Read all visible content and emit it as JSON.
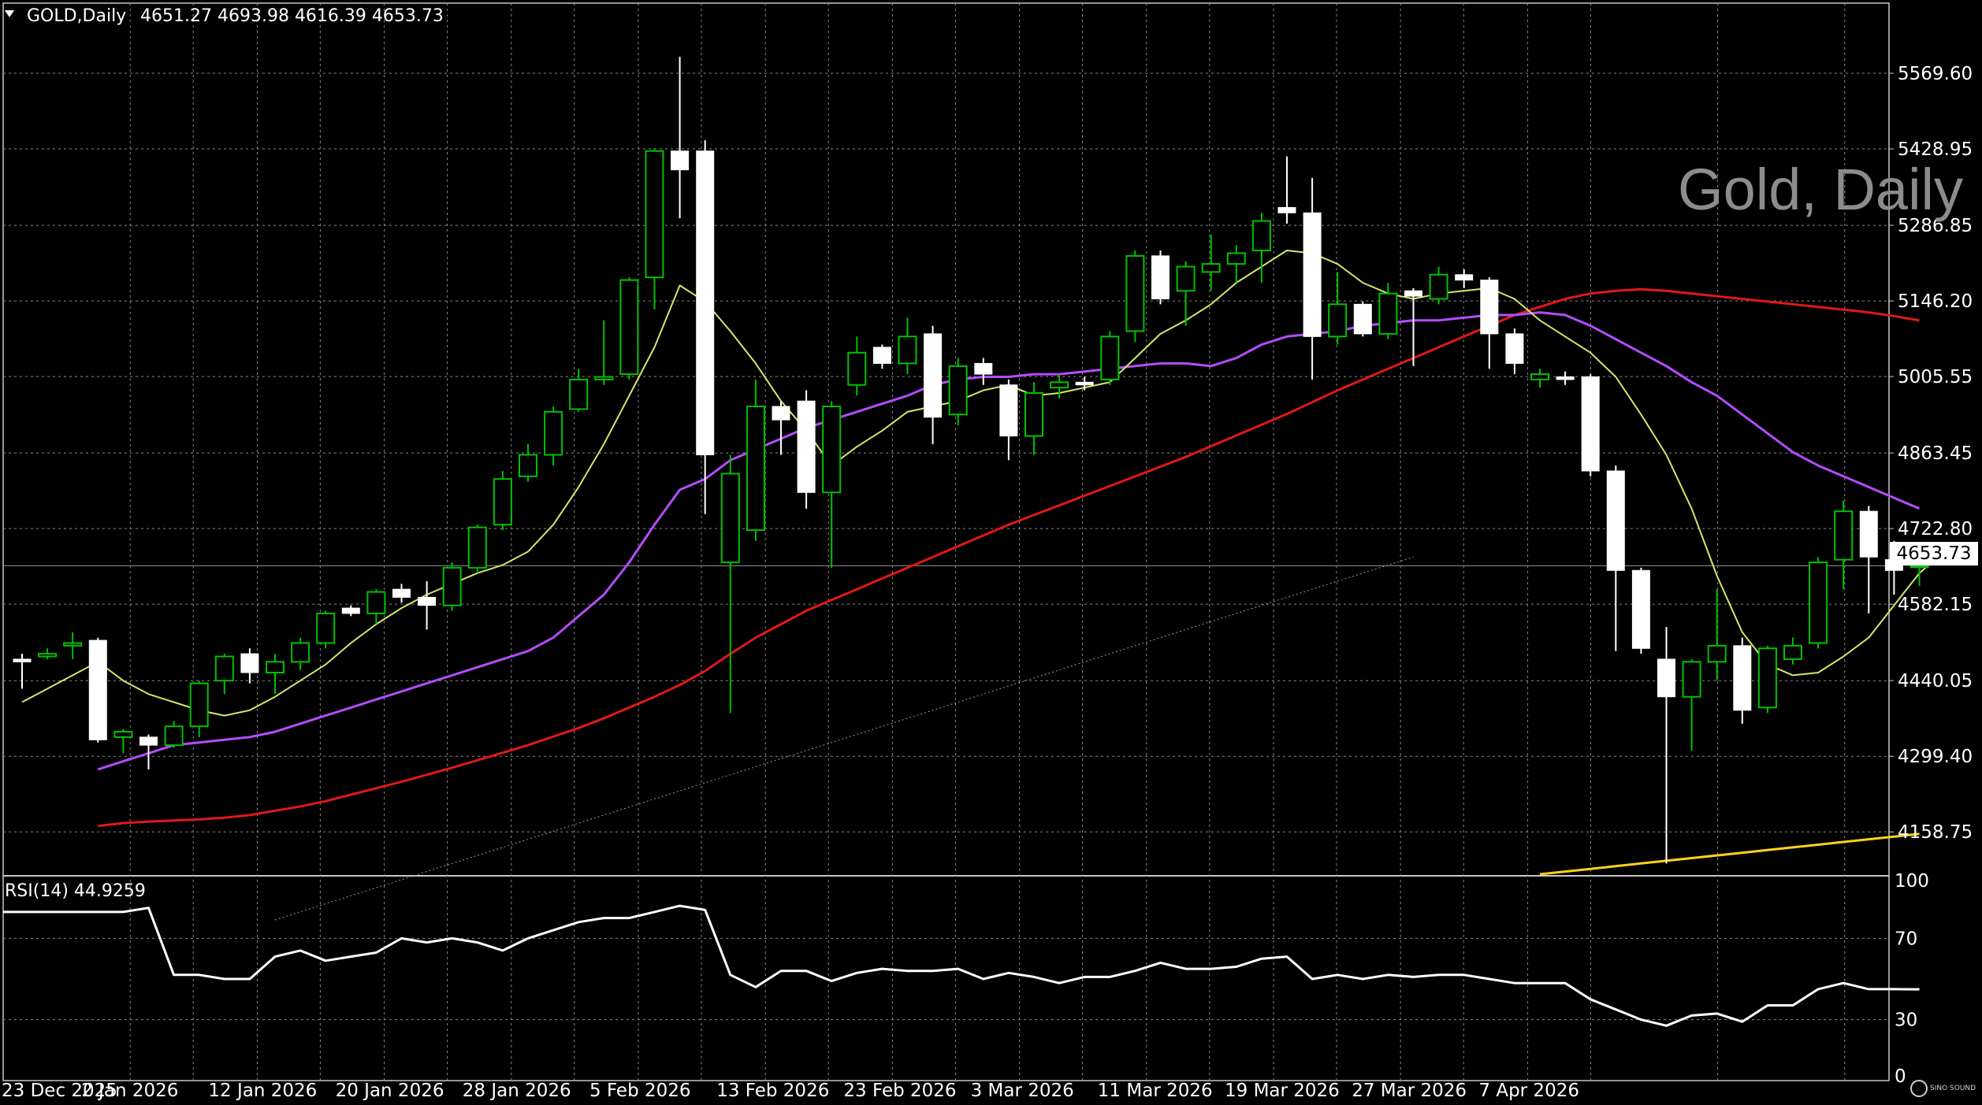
{
  "header": {
    "dropdown_icon": "triangle-down-icon",
    "symbol": "GOLD,Daily",
    "ohlc": "4651.27 4693.98 4616.39 4653.73"
  },
  "watermark": "Gold, Daily",
  "current_price": "4653.73",
  "rsi_label": "RSI(14) 44.9259",
  "logo_text": "SINO SOUND",
  "colors": {
    "background": "#000000",
    "grid": "#8a8a8a",
    "bull_candle": "#00c000",
    "bear_candle": "#ffffff",
    "ma_fast": "#cfe96a",
    "ma_mid": "#b44cff",
    "ma_slow": "#e01818",
    "ma_200": "#9a9a9a",
    "ma_yellow": "#ffd21a",
    "rsi": "#ffffff"
  },
  "chart_data": [
    {
      "type": "candlestick",
      "title": "Gold, Daily",
      "ylim": [
        4080,
        5700
      ],
      "price_ticks": [
        "5569.60",
        "5428.95",
        "5286.85",
        "5146.20",
        "5005.55",
        "4863.45",
        "4722.80",
        "4582.15",
        "4440.05",
        "4299.40",
        "4158.75"
      ],
      "date_ticks": [
        "23 Dec 2025",
        "2 Jan 2026",
        "12 Jan 2026",
        "20 Jan 2026",
        "28 Jan 2026",
        "5 Feb 2026",
        "13 Feb 2026",
        "23 Feb 2026",
        "3 Mar 2026",
        "11 Mar 2026",
        "19 Mar 2026",
        "27 Mar 2026",
        "7 Apr 2026"
      ],
      "candles": [
        {
          "o": 4480,
          "h": 4490,
          "l": 4425,
          "c": 4475
        },
        {
          "o": 4485,
          "h": 4500,
          "l": 4480,
          "c": 4490
        },
        {
          "o": 4505,
          "h": 4530,
          "l": 4480,
          "c": 4510
        },
        {
          "o": 4515,
          "h": 4520,
          "l": 4325,
          "c": 4330
        },
        {
          "o": 4335,
          "h": 4350,
          "l": 4305,
          "c": 4345
        },
        {
          "o": 4335,
          "h": 4340,
          "l": 4275,
          "c": 4320
        },
        {
          "o": 4320,
          "h": 4365,
          "l": 4315,
          "c": 4355
        },
        {
          "o": 4355,
          "h": 4440,
          "l": 4335,
          "c": 4435
        },
        {
          "o": 4440,
          "h": 4490,
          "l": 4415,
          "c": 4485
        },
        {
          "o": 4490,
          "h": 4500,
          "l": 4435,
          "c": 4455
        },
        {
          "o": 4455,
          "h": 4490,
          "l": 4415,
          "c": 4475
        },
        {
          "o": 4475,
          "h": 4520,
          "l": 4460,
          "c": 4510
        },
        {
          "o": 4510,
          "h": 4570,
          "l": 4500,
          "c": 4565
        },
        {
          "o": 4575,
          "h": 4580,
          "l": 4560,
          "c": 4565
        },
        {
          "o": 4565,
          "h": 4610,
          "l": 4545,
          "c": 4605
        },
        {
          "o": 4610,
          "h": 4620,
          "l": 4585,
          "c": 4595
        },
        {
          "o": 4595,
          "h": 4625,
          "l": 4535,
          "c": 4580
        },
        {
          "o": 4580,
          "h": 4660,
          "l": 4570,
          "c": 4650
        },
        {
          "o": 4650,
          "h": 4730,
          "l": 4640,
          "c": 4725
        },
        {
          "o": 4730,
          "h": 4830,
          "l": 4720,
          "c": 4815
        },
        {
          "o": 4820,
          "h": 4880,
          "l": 4810,
          "c": 4860
        },
        {
          "o": 4860,
          "h": 4950,
          "l": 4840,
          "c": 4940
        },
        {
          "o": 4945,
          "h": 5020,
          "l": 4940,
          "c": 5000
        },
        {
          "o": 5000,
          "h": 5110,
          "l": 4990,
          "c": 5005
        },
        {
          "o": 5010,
          "h": 5190,
          "l": 5000,
          "c": 5185
        },
        {
          "o": 5190,
          "h": 5430,
          "l": 5130,
          "c": 5425
        },
        {
          "o": 5425,
          "h": 5600,
          "l": 5300,
          "c": 5390
        },
        {
          "o": 5425,
          "h": 5445,
          "l": 4750,
          "c": 4860
        },
        {
          "o": 4660,
          "h": 4860,
          "l": 4380,
          "c": 4825
        },
        {
          "o": 4720,
          "h": 5000,
          "l": 4700,
          "c": 4950
        },
        {
          "o": 4950,
          "h": 4960,
          "l": 4860,
          "c": 4925
        },
        {
          "o": 4960,
          "h": 4980,
          "l": 4760,
          "c": 4790
        },
        {
          "o": 4790,
          "h": 4960,
          "l": 4650,
          "c": 4950
        },
        {
          "o": 4990,
          "h": 5080,
          "l": 4970,
          "c": 5050
        },
        {
          "o": 5060,
          "h": 5065,
          "l": 5020,
          "c": 5030
        },
        {
          "o": 5030,
          "h": 5115,
          "l": 5010,
          "c": 5080
        },
        {
          "o": 5085,
          "h": 5100,
          "l": 4880,
          "c": 4930
        },
        {
          "o": 4935,
          "h": 5040,
          "l": 4915,
          "c": 5025
        },
        {
          "o": 5030,
          "h": 5040,
          "l": 4990,
          "c": 5010
        },
        {
          "o": 4990,
          "h": 5000,
          "l": 4850,
          "c": 4895
        },
        {
          "o": 4895,
          "h": 4995,
          "l": 4860,
          "c": 4975
        },
        {
          "o": 4985,
          "h": 5010,
          "l": 4965,
          "c": 4995
        },
        {
          "o": 4995,
          "h": 5005,
          "l": 4980,
          "c": 4990
        },
        {
          "o": 5000,
          "h": 5090,
          "l": 4990,
          "c": 5080
        },
        {
          "o": 5090,
          "h": 5240,
          "l": 5070,
          "c": 5230
        },
        {
          "o": 5230,
          "h": 5240,
          "l": 5140,
          "c": 5150
        },
        {
          "o": 5165,
          "h": 5220,
          "l": 5100,
          "c": 5210
        },
        {
          "o": 5200,
          "h": 5270,
          "l": 5165,
          "c": 5215
        },
        {
          "o": 5215,
          "h": 5250,
          "l": 5180,
          "c": 5235
        },
        {
          "o": 5240,
          "h": 5310,
          "l": 5180,
          "c": 5295
        },
        {
          "o": 5320,
          "h": 5415,
          "l": 5290,
          "c": 5310
        },
        {
          "o": 5310,
          "h": 5375,
          "l": 5000,
          "c": 5080
        },
        {
          "o": 5080,
          "h": 5200,
          "l": 5065,
          "c": 5140
        },
        {
          "o": 5140,
          "h": 5145,
          "l": 5080,
          "c": 5085
        },
        {
          "o": 5085,
          "h": 5180,
          "l": 5075,
          "c": 5160
        },
        {
          "o": 5165,
          "h": 5170,
          "l": 5025,
          "c": 5155
        },
        {
          "o": 5150,
          "h": 5210,
          "l": 5140,
          "c": 5195
        },
        {
          "o": 5195,
          "h": 5205,
          "l": 5170,
          "c": 5185
        },
        {
          "o": 5185,
          "h": 5190,
          "l": 5020,
          "c": 5085
        },
        {
          "o": 5085,
          "h": 5095,
          "l": 5010,
          "c": 5030
        },
        {
          "o": 5000,
          "h": 5020,
          "l": 4985,
          "c": 5010
        },
        {
          "o": 5005,
          "h": 5015,
          "l": 4990,
          "c": 5000
        },
        {
          "o": 5005,
          "h": 5010,
          "l": 4820,
          "c": 4830
        },
        {
          "o": 4830,
          "h": 4840,
          "l": 4495,
          "c": 4645
        },
        {
          "o": 4645,
          "h": 4650,
          "l": 4490,
          "c": 4500
        },
        {
          "o": 4480,
          "h": 4540,
          "l": 4100,
          "c": 4410
        },
        {
          "o": 4410,
          "h": 4480,
          "l": 4310,
          "c": 4475
        },
        {
          "o": 4475,
          "h": 4610,
          "l": 4440,
          "c": 4505
        },
        {
          "o": 4505,
          "h": 4520,
          "l": 4360,
          "c": 4385
        },
        {
          "o": 4390,
          "h": 4505,
          "l": 4380,
          "c": 4500
        },
        {
          "o": 4480,
          "h": 4520,
          "l": 4470,
          "c": 4505
        },
        {
          "o": 4510,
          "h": 4670,
          "l": 4500,
          "c": 4660
        },
        {
          "o": 4665,
          "h": 4775,
          "l": 4610,
          "c": 4755
        },
        {
          "o": 4755,
          "h": 4765,
          "l": 4565,
          "c": 4670
        },
        {
          "o": 4665,
          "h": 4700,
          "l": 4600,
          "c": 4645
        },
        {
          "o": 4651.27,
          "h": 4693.98,
          "l": 4616.39,
          "c": 4653.73
        }
      ],
      "ma_fast": [
        4400,
        4425,
        4450,
        4475,
        4440,
        4415,
        4400,
        4385,
        4375,
        4385,
        4410,
        4440,
        4470,
        4510,
        4545,
        4575,
        4600,
        4620,
        4640,
        4655,
        4680,
        4730,
        4800,
        4880,
        4970,
        5060,
        5175,
        5145,
        5090,
        5030,
        4960,
        4905,
        4840,
        4875,
        4905,
        4940,
        4950,
        4960,
        4980,
        4990,
        4970,
        4975,
        4985,
        4995,
        5040,
        5085,
        5110,
        5140,
        5180,
        5210,
        5240,
        5235,
        5215,
        5180,
        5160,
        5150,
        5160,
        5165,
        5170,
        5150,
        5110,
        5080,
        5050,
        5005,
        4935,
        4860,
        4760,
        4635,
        4530,
        4470,
        4450,
        4455,
        4485,
        4520,
        4580,
        4640,
        4680
      ],
      "ma_mid": [
        4275,
        4290,
        4305,
        4320,
        4325,
        4330,
        4335,
        4345,
        4360,
        4375,
        4390,
        4405,
        4420,
        4435,
        4450,
        4465,
        4480,
        4495,
        4520,
        4560,
        4600,
        4660,
        4730,
        4795,
        4815,
        4850,
        4870,
        4890,
        4910,
        4925,
        4940,
        4955,
        4970,
        4990,
        5000,
        5005,
        5005,
        5010,
        5010,
        5015,
        5020,
        5025,
        5030,
        5030,
        5025,
        5040,
        5065,
        5080,
        5085,
        5090,
        5100,
        5105,
        5110,
        5110,
        5115,
        5120,
        5120,
        5125,
        5120,
        5100,
        5075,
        5050,
        5025,
        4995,
        4970,
        4935,
        4900,
        4865,
        4840,
        4820,
        4800,
        4780,
        4760
      ],
      "ma_slow": [
        4170,
        4175,
        4178,
        4180,
        4182,
        4185,
        4190,
        4198,
        4206,
        4216,
        4228,
        4240,
        4252,
        4265,
        4278,
        4292,
        4306,
        4320,
        4336,
        4352,
        4370,
        4390,
        4410,
        4432,
        4458,
        4490,
        4520,
        4545,
        4570,
        4590,
        4610,
        4630,
        4650,
        4670,
        4690,
        4710,
        4730,
        4748,
        4766,
        4784,
        4802,
        4820,
        4838,
        4856,
        4876,
        4896,
        4916,
        4936,
        4958,
        4980,
        5000,
        5020,
        5040,
        5060,
        5080,
        5100,
        5120,
        5135,
        5150,
        5160,
        5165,
        5168,
        5165,
        5160,
        5155,
        5150,
        5145,
        5140,
        5135,
        5130,
        5125,
        5118,
        5110
      ],
      "ma_200": [
        3995,
        4010,
        4025,
        4040,
        4055,
        4070,
        4085,
        4100,
        4115,
        4130,
        4145,
        4160,
        4175,
        4190,
        4205,
        4220,
        4235,
        4250,
        4265,
        4280,
        4295,
        4310,
        4325,
        4340,
        4355,
        4370,
        4385,
        4400,
        4415,
        4430,
        4445,
        4460,
        4475,
        4490,
        4505,
        4520,
        4535,
        4550,
        4565,
        4580,
        4595,
        4610,
        4625,
        4640,
        4655,
        4670
      ],
      "ma_yellow": [
        4080,
        4085,
        4090,
        4095,
        4100,
        4105,
        4110,
        4115,
        4120,
        4125,
        4130,
        4135,
        4140,
        4145,
        4150,
        4155
      ]
    },
    {
      "type": "line",
      "title": "RSI(14) 44.9259",
      "ylim": [
        0,
        100
      ],
      "y_ticks": [
        "100",
        "70",
        "30",
        "0"
      ],
      "series": [
        {
          "name": "RSI(14)",
          "values": [
            83,
            83,
            85,
            52,
            52,
            50,
            50,
            61,
            64,
            59,
            61,
            63,
            70,
            68,
            70,
            68,
            64,
            70,
            74,
            78,
            80,
            80,
            83,
            86,
            84,
            52,
            46,
            54,
            54,
            49,
            53,
            55,
            54,
            54,
            55,
            50,
            53,
            51,
            48,
            51,
            51,
            54,
            58,
            55,
            55,
            56,
            60,
            61,
            50,
            52,
            50,
            52,
            51,
            52,
            52,
            50,
            48,
            48,
            48,
            40,
            35,
            30,
            27,
            32,
            33,
            29,
            37,
            37,
            45,
            48,
            45,
            45,
            44.9259
          ]
        }
      ]
    }
  ]
}
